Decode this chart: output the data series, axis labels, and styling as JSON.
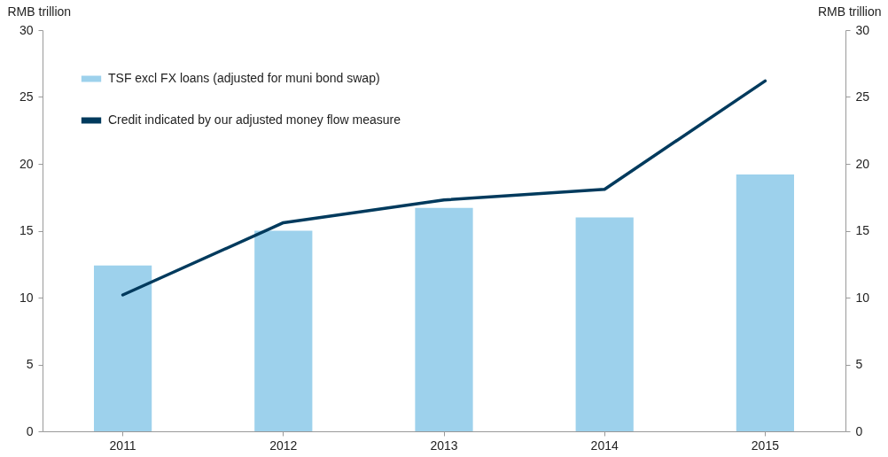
{
  "chart_data": {
    "type": "bar",
    "ylabel": "RMB trillion",
    "y2label": "RMB trillion",
    "categories": [
      "2011",
      "2012",
      "2013",
      "2014",
      "2015"
    ],
    "series": [
      {
        "name": "TSF excl FX loans (adjusted for muni bond swap)",
        "color": "#9dd1ec",
        "values": [
          12.4,
          15.0,
          16.7,
          16.0,
          19.2
        ]
      },
      {
        "name": "Credit indicated by our adjusted money flow measure",
        "type": "line",
        "axis": "y2",
        "color": "#003a5d",
        "values": [
          10.2,
          15.6,
          17.3,
          18.1,
          26.2
        ]
      }
    ],
    "ylim": [
      0,
      30
    ],
    "yticks": [
      0,
      5,
      10,
      15,
      20,
      25,
      30
    ],
    "y2lim": [
      0,
      30
    ],
    "y2ticks": [
      0,
      5,
      10,
      15,
      20,
      25,
      30
    ],
    "legend": "top left",
    "grid": false
  }
}
